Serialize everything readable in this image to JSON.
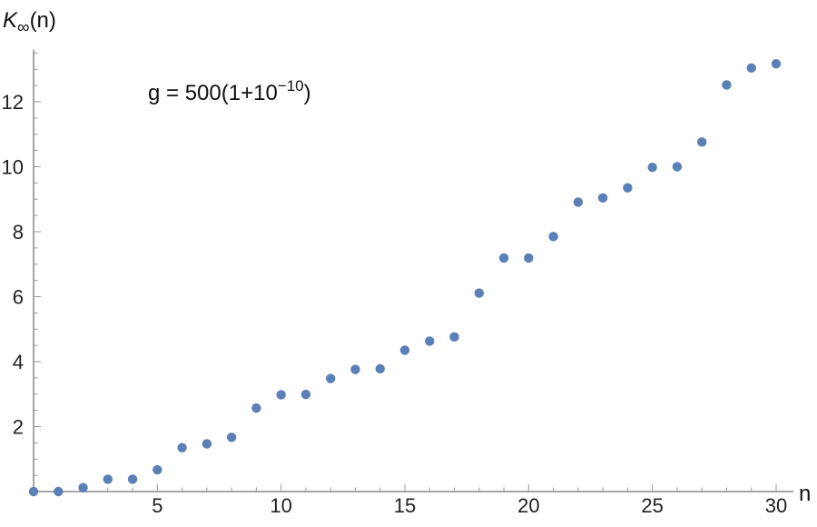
{
  "chart_data": {
    "type": "scatter",
    "title": "",
    "xlabel": "n",
    "ylabel_main": "K",
    "ylabel_sub": "∞",
    "ylabel_tail": "(n)",
    "annotation": {
      "main": "g = 500(1+10",
      "exponent": "−10",
      "tail": ")"
    },
    "xlim": [
      0,
      30.7
    ],
    "ylim": [
      0,
      13.6
    ],
    "xticks": [
      5,
      10,
      15,
      20,
      25,
      30
    ],
    "yticks": [
      2,
      4,
      6,
      8,
      10,
      12
    ],
    "grid": false,
    "marker_color": "#5b7fb7",
    "series": [
      {
        "x": [
          0,
          1,
          2,
          3,
          4,
          5,
          6,
          7,
          8,
          9,
          10,
          11,
          12,
          13,
          14,
          15,
          16,
          17,
          18,
          19,
          20,
          21,
          22,
          23,
          24,
          25,
          26,
          27,
          28,
          29,
          30
        ],
        "y": [
          0.0,
          0.0,
          0.12,
          0.38,
          0.38,
          0.67,
          1.35,
          1.47,
          1.67,
          2.57,
          2.98,
          2.99,
          3.48,
          3.76,
          3.78,
          4.35,
          4.63,
          4.76,
          6.11,
          7.19,
          7.19,
          7.85,
          8.91,
          9.04,
          9.35,
          9.98,
          10.0,
          10.76,
          12.52,
          13.04,
          13.17
        ]
      }
    ]
  }
}
